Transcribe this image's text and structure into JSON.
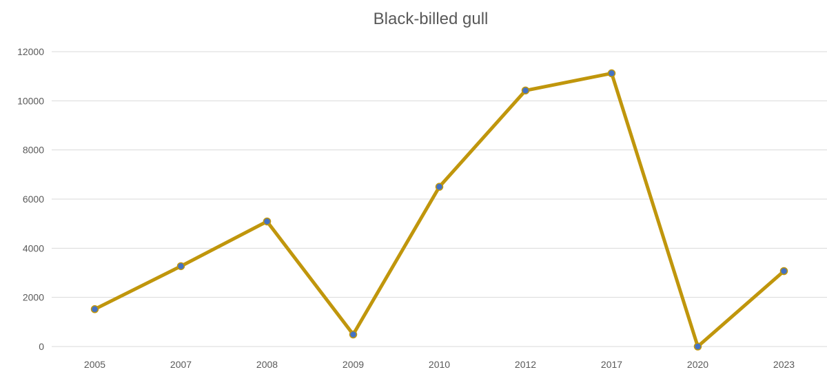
{
  "chart_data": {
    "type": "line",
    "title": "Black-billed gull",
    "xlabel": "",
    "ylabel": "",
    "categories": [
      "2005",
      "2007",
      "2008",
      "2009",
      "2010",
      "2012",
      "2017",
      "2020",
      "2023"
    ],
    "series": [
      {
        "values": [
          1520,
          3270,
          5090,
          490,
          6500,
          10420,
          11120,
          0,
          3070
        ]
      }
    ],
    "ylim": [
      0,
      12000
    ],
    "yticks": [
      "0",
      "2000",
      "4000",
      "6000",
      "8000",
      "10000",
      "12000"
    ],
    "grid": true,
    "legend": "none",
    "colors": {
      "line": "#C0960C",
      "marker_fill": "#4472C4",
      "grid": "#D9D9D9",
      "text": "#595959"
    }
  }
}
